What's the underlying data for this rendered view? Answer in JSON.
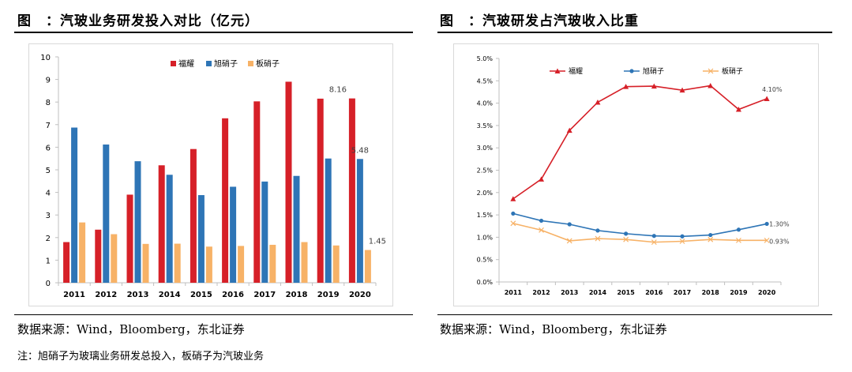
{
  "left_panel": {
    "title": "图　：汽玻业务研发投入对比（亿元）",
    "source": "数据来源：Wind，Bloomberg，东北证券",
    "note": "注：旭硝子为玻璃业务研发总投入，板硝子为汽玻业务"
  },
  "right_panel": {
    "title": "图　：汽玻研发占汽玻收入比重",
    "source": "数据来源：Wind，Bloomberg，东北证券"
  },
  "colors": {
    "fuyao": "#d62028",
    "asahi": "#2e75b6",
    "nsg": "#f7b267",
    "nsg_line": "#f7b267"
  },
  "chart_data": [
    {
      "type": "bar",
      "categories": [
        "2011",
        "2012",
        "2013",
        "2014",
        "2015",
        "2016",
        "2017",
        "2018",
        "2019",
        "2020"
      ],
      "series": [
        {
          "name": "福耀",
          "values": [
            1.8,
            2.35,
            3.9,
            5.2,
            5.92,
            7.28,
            8.03,
            8.9,
            8.15,
            8.16
          ]
        },
        {
          "name": "旭硝子",
          "values": [
            6.87,
            6.12,
            5.38,
            4.78,
            3.88,
            4.25,
            4.48,
            4.73,
            5.5,
            5.48
          ]
        },
        {
          "name": "板硝子",
          "values": [
            2.67,
            2.15,
            1.72,
            1.73,
            1.6,
            1.63,
            1.68,
            1.8,
            1.65,
            1.45
          ]
        }
      ],
      "ylim": [
        0,
        10
      ],
      "yticks": [
        "0",
        "1",
        "2",
        "3",
        "4",
        "5",
        "6",
        "7",
        "8",
        "9",
        "10"
      ],
      "data_labels": [
        "8.16",
        "5.48",
        "1.45"
      ],
      "legend_position": "top-center",
      "grid": false
    },
    {
      "type": "line",
      "x": [
        "2011",
        "2012",
        "2013",
        "2014",
        "2015",
        "2016",
        "2017",
        "2018",
        "2019",
        "2020"
      ],
      "series": [
        {
          "name": "福耀",
          "values": [
            1.86,
            2.3,
            3.39,
            4.02,
            4.37,
            4.38,
            4.29,
            4.39,
            3.86,
            4.1
          ]
        },
        {
          "name": "旭硝子",
          "values": [
            1.53,
            1.37,
            1.29,
            1.15,
            1.08,
            1.03,
            1.02,
            1.05,
            1.17,
            1.3
          ]
        },
        {
          "name": "板硝子",
          "values": [
            1.31,
            1.16,
            0.92,
            0.97,
            0.95,
            0.89,
            0.91,
            0.95,
            0.93,
            0.93
          ]
        }
      ],
      "ylim": [
        0,
        5
      ],
      "yticks": [
        "0.0%",
        "0.5%",
        "1.0%",
        "1.5%",
        "2.0%",
        "2.5%",
        "3.0%",
        "3.5%",
        "4.0%",
        "4.5%",
        "5.0%"
      ],
      "data_labels": [
        "4.10%",
        "1.30%",
        "0.93%"
      ],
      "legend_position": "top-left",
      "grid": false
    }
  ]
}
